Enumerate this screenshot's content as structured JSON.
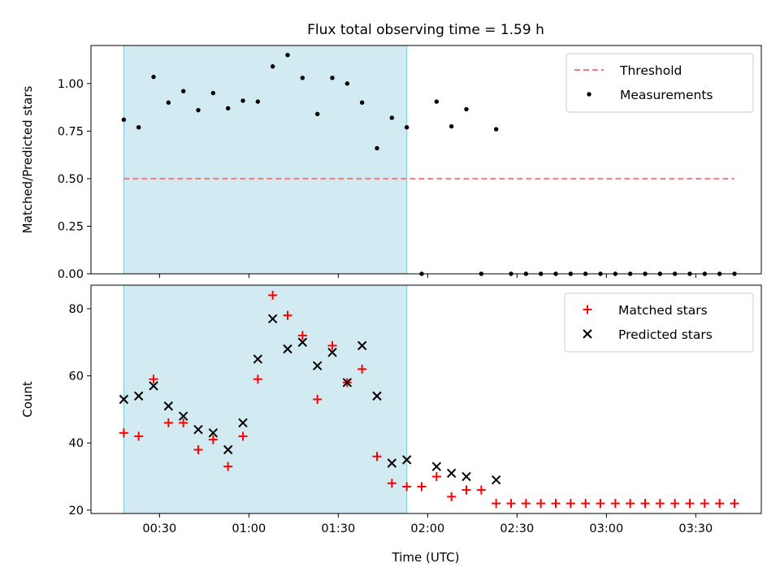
{
  "chart_data": {
    "title": "Flux total observing time = 1.59 h",
    "shaded_region": {
      "x_start_min": 18,
      "x_end_min": 113,
      "color": "#add8e6"
    },
    "xlabel": "Time (UTC)",
    "x_ticks": [
      {
        "value": 30,
        "label": "00:30"
      },
      {
        "value": 60,
        "label": "01:00"
      },
      {
        "value": 90,
        "label": "01:30"
      },
      {
        "value": 120,
        "label": "02:00"
      },
      {
        "value": 150,
        "label": "02:30"
      },
      {
        "value": 180,
        "label": "03:00"
      },
      {
        "value": 210,
        "label": "03:30"
      }
    ],
    "xlim": [
      7,
      232
    ],
    "panels": [
      {
        "type": "scatter",
        "ylabel": "Matched/Predicted stars",
        "ylim": [
          0,
          1.2
        ],
        "y_ticks": [
          {
            "value": 0,
            "label": "0.00"
          },
          {
            "value": 0.25,
            "label": "0.25"
          },
          {
            "value": 0.5,
            "label": "0.50"
          },
          {
            "value": 0.75,
            "label": "0.75"
          },
          {
            "value": 1.0,
            "label": "1.00"
          }
        ],
        "legend": [
          {
            "label": "Threshold",
            "marker": "dash",
            "color": "#ff7777"
          },
          {
            "label": "Measurements",
            "marker": "dot",
            "color": "#000000"
          }
        ],
        "threshold": {
          "value": 0.5,
          "x_start": 18,
          "x_end": 223,
          "color": "#ff7777"
        },
        "series": [
          {
            "name": "Measurements",
            "color": "#000000",
            "marker": "dot",
            "x": [
              18,
              23,
              28,
              33,
              38,
              43,
              48,
              53,
              58,
              63,
              68,
              73,
              78,
              83,
              88,
              93,
              98,
              103,
              108,
              113,
              118,
              123,
              128,
              133,
              138,
              143,
              148,
              153,
              158,
              163,
              168,
              173,
              178,
              183,
              188,
              193,
              198,
              203,
              208,
              213,
              218,
              223
            ],
            "y": [
              0.81,
              0.77,
              1.035,
              0.9,
              0.96,
              0.86,
              0.95,
              0.87,
              0.91,
              0.905,
              1.09,
              1.15,
              1.03,
              0.84,
              1.03,
              1.0,
              0.9,
              0.66,
              0.82,
              0.77,
              0.0,
              0.905,
              0.775,
              0.865,
              0.0,
              0.76,
              0.0,
              0.0,
              0.0,
              0.0,
              0.0,
              0.0,
              0.0,
              0.0,
              0.0,
              0.0,
              0.0,
              0.0,
              0.0,
              0.0,
              0.0,
              0.0
            ]
          }
        ]
      },
      {
        "type": "scatter",
        "ylabel": "Count",
        "ylim": [
          19,
          87
        ],
        "y_ticks": [
          {
            "value": 20,
            "label": "20"
          },
          {
            "value": 40,
            "label": "40"
          },
          {
            "value": 60,
            "label": "60"
          },
          {
            "value": 80,
            "label": "80"
          }
        ],
        "legend": [
          {
            "label": "Matched stars",
            "marker": "plus",
            "color": "#ff0000"
          },
          {
            "label": "Predicted stars",
            "marker": "x",
            "color": "#000000"
          }
        ],
        "series": [
          {
            "name": "Matched stars",
            "color": "#ff0000",
            "marker": "plus",
            "x": [
              18,
              23,
              28,
              33,
              38,
              43,
              48,
              53,
              58,
              63,
              68,
              73,
              78,
              83,
              88,
              93,
              98,
              103,
              108,
              113,
              118,
              123,
              128,
              133,
              138,
              143,
              148,
              153,
              158,
              163,
              168,
              173,
              178,
              183,
              188,
              193,
              198,
              203,
              208,
              213,
              218,
              223
            ],
            "y": [
              43,
              42,
              59,
              46,
              46,
              38,
              41,
              33,
              42,
              59,
              84,
              78,
              72,
              53,
              69,
              58,
              62,
              36,
              28,
              27,
              27,
              30,
              24,
              26,
              26,
              22,
              22,
              22,
              22,
              22,
              22,
              22,
              22,
              22,
              22,
              22,
              22,
              22,
              22,
              22,
              22,
              22
            ]
          },
          {
            "name": "Predicted stars",
            "color": "#000000",
            "marker": "x",
            "x": [
              18,
              23,
              28,
              33,
              38,
              43,
              48,
              53,
              58,
              63,
              68,
              73,
              78,
              83,
              88,
              93,
              98,
              103,
              108,
              113,
              123,
              128,
              133,
              143
            ],
            "y": [
              53,
              54,
              57,
              51,
              48,
              44,
              43,
              38,
              46,
              65,
              77,
              68,
              70,
              63,
              67,
              58,
              69,
              54,
              34,
              35,
              33,
              31,
              30,
              29
            ]
          }
        ]
      }
    ]
  }
}
